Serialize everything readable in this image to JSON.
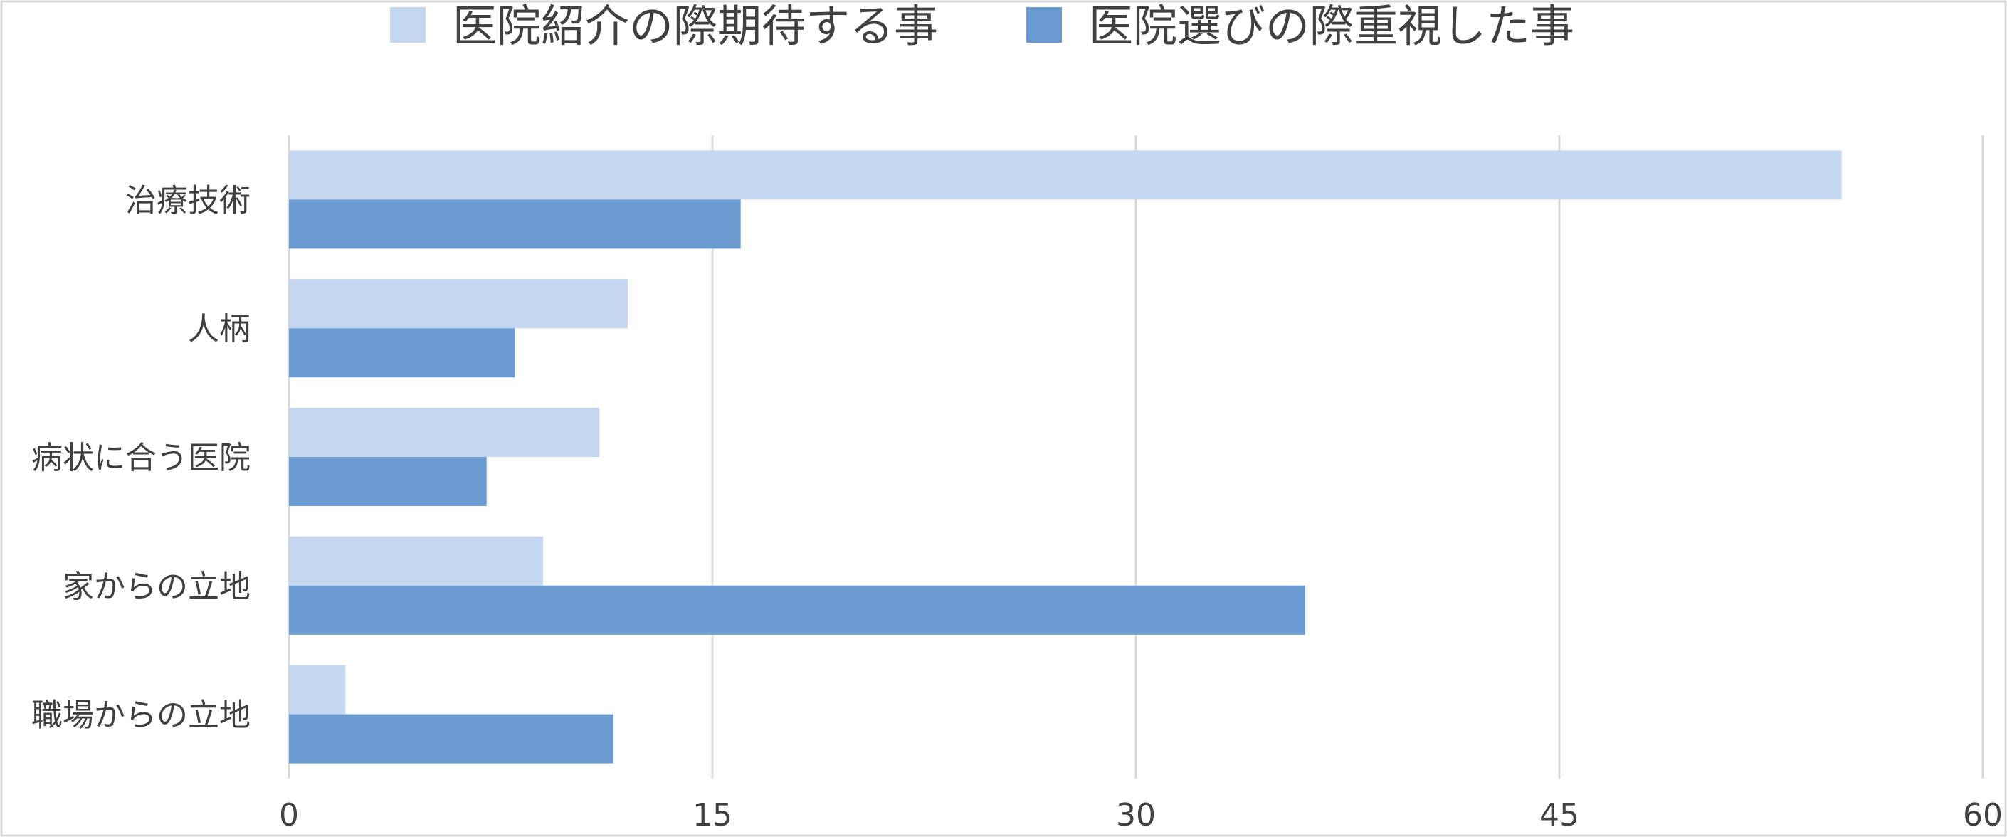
{
  "chart_data": {
    "type": "bar",
    "orientation": "horizontal",
    "categories": [
      "治療技術",
      "人柄",
      "病状に合う医院",
      "家からの立地",
      "職場からの立地"
    ],
    "series": [
      {
        "name": "医院紹介の際期待する事",
        "color": "#c5d7ee",
        "values": [
          55,
          12,
          11,
          9,
          2
        ]
      },
      {
        "name": "医院選びの際重視した事",
        "color": "#6c9bd2",
        "values": [
          16,
          8,
          7,
          36,
          11.5
        ]
      }
    ],
    "xlim": [
      0,
      60
    ],
    "xticks": [
      "0",
      "15",
      "30",
      "45",
      "60"
    ],
    "grid": true,
    "legend_position": "top-center"
  }
}
